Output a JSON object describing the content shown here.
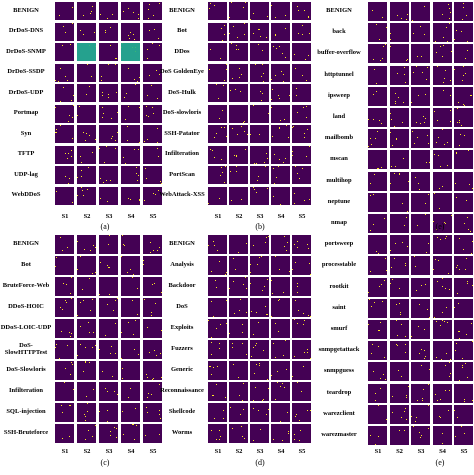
{
  "panels": [
    {
      "rows": [
        "BENIGN",
        "DrDoS-DNS",
        "DrDoS-SNMP",
        "DrDoS-SSDP",
        "DrDoS-UDP",
        "Portmap",
        "Syn",
        "TFTP",
        "UDP-lag",
        "WebDDoS"
      ],
      "columns": [
        "S1",
        "S2",
        "S3",
        "S4",
        "S5"
      ],
      "caption": "(a)"
    },
    {
      "rows": [
        "BENIGN",
        "Bot",
        "DDos",
        "DoS GoldenEye",
        "DoS-Hulk",
        "DoS-slowloris",
        "SSH-Patator",
        "Infilteration",
        "PortScan",
        "WebAttack-XSS"
      ],
      "columns": [
        "S1",
        "S2",
        "S3",
        "S4",
        "S5"
      ],
      "caption": "(b)"
    },
    {
      "rows": [
        "BENIGN",
        "Bot",
        "BruteForce-Web",
        "DDoS-HOIC",
        "DDoS-LOIC-UDP",
        "DoS-SlowHTTPTest",
        "DoS-Slowloris",
        "Infilteration",
        "SQL-injection",
        "SSH-Bruteforce"
      ],
      "columns": [
        "S1",
        "S2",
        "S3",
        "S4",
        "S5"
      ],
      "caption": "(c)"
    },
    {
      "rows": [
        "BENIGN",
        "Analysis",
        "Backdoor",
        "DoS",
        "Exploits",
        "Fuzzers",
        "Generic",
        "Reconnaissance",
        "Shellcode",
        "Worms"
      ],
      "columns": [
        "S1",
        "S2",
        "S3",
        "S4",
        "S5"
      ],
      "caption": "(d)"
    },
    {
      "rows": [
        "BENIGN",
        "back",
        "buffer-overflow",
        "httptunnel",
        "ipsweep",
        "land",
        "mailbomb",
        "mscan",
        "multihop",
        "neptune",
        "nmap",
        "portsweep",
        "processtable",
        "rootkit",
        "saint",
        "smurf",
        "snmpgetattack",
        "snmpguess",
        "teardrop",
        "warezclient",
        "warezmaster"
      ],
      "columns": [
        "S1",
        "S2",
        "S3",
        "S4",
        "S5"
      ],
      "caption": "(e)",
      "upper_caption": "(e)"
    }
  ]
}
